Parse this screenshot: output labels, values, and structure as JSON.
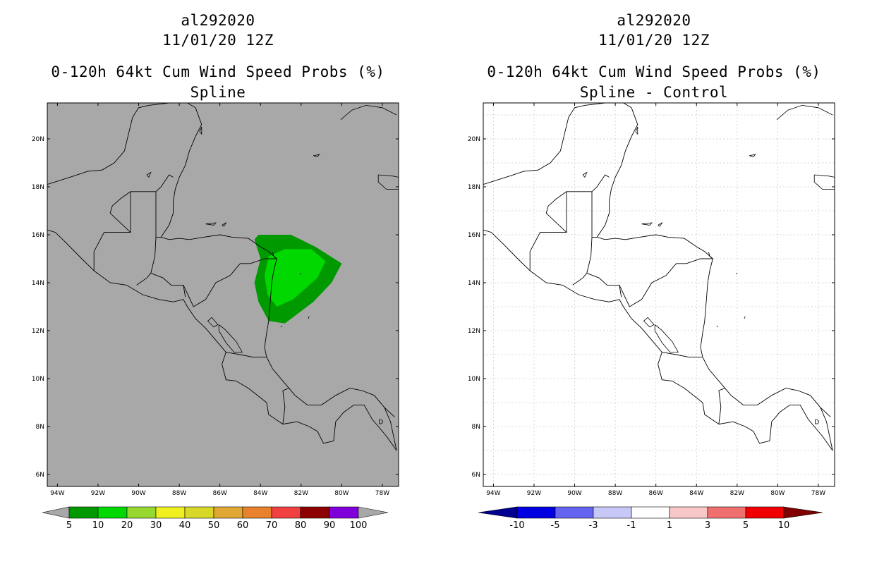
{
  "panels": [
    {
      "storm_id": "al292020",
      "datetime": "11/01/20 12Z",
      "product": "0-120h 64kt Cum Wind Speed Probs (%)",
      "subtitle": "Spline",
      "background": "#a8a8a8",
      "grid": false,
      "colorbar": {
        "labels": [
          "5",
          "10",
          "20",
          "30",
          "40",
          "50",
          "60",
          "70",
          "80",
          "90",
          "100"
        ],
        "colors": [
          "#009a00",
          "#00d800",
          "#96d830",
          "#f0f020",
          "#d8d828",
          "#e0a832",
          "#e8822e",
          "#f04040",
          "#8c0000",
          "#8000dc"
        ],
        "low_end_color": "#a8a8a8",
        "high_end_color": "#a8a8a8"
      },
      "probability_regions": [
        {
          "level": "5",
          "color": "#009a00"
        },
        {
          "level": "10",
          "color": "#00d800"
        }
      ]
    },
    {
      "storm_id": "al292020",
      "datetime": "11/01/20 12Z",
      "product": "0-120h 64kt Cum Wind Speed Probs (%)",
      "subtitle": "Spline - Control",
      "background": "#ffffff",
      "grid": true,
      "colorbar": {
        "labels": [
          "-10",
          "-5",
          "-3",
          "-1",
          "1",
          "3",
          "5",
          "10"
        ],
        "colors": [
          "#0000e0",
          "#6464f0",
          "#c8c8f8",
          "#ffffff",
          "#f8c8c8",
          "#f07070",
          "#f00000"
        ],
        "low_end_color": "#000090",
        "high_end_color": "#800000"
      }
    }
  ],
  "map": {
    "lon_range": [
      -94.5,
      -77.2
    ],
    "lat_range": [
      5.5,
      21.5
    ],
    "lon_ticks": [
      "94W",
      "92W",
      "90W",
      "88W",
      "86W",
      "84W",
      "82W",
      "80W",
      "78W"
    ],
    "lat_ticks": [
      "6N",
      "8N",
      "10N",
      "12N",
      "14N",
      "16N",
      "18N",
      "20N"
    ],
    "label_D": "D"
  }
}
